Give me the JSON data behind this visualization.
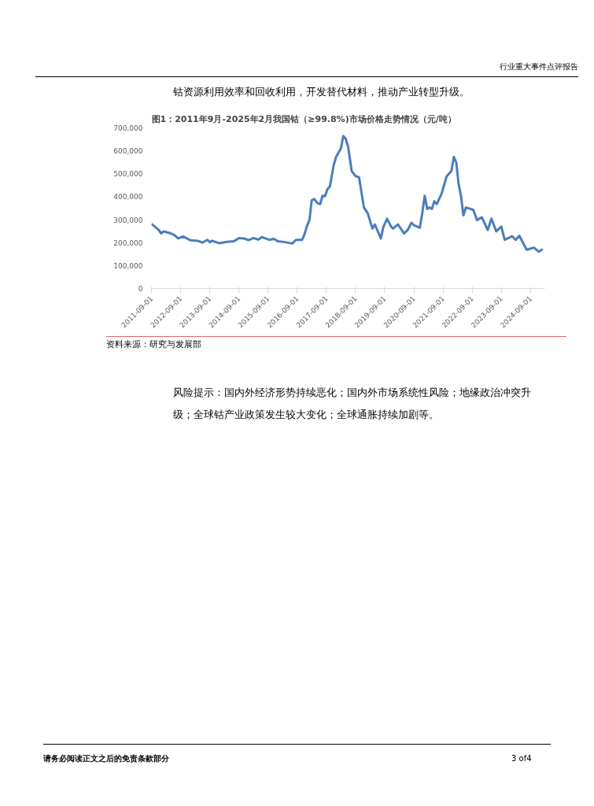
{
  "chart_data": {
    "type": "line",
    "title": "图1：2011年9月-2025年2月我国钴（≥99.8%)市场价格走势情况（元/吨）",
    "annotations": [
      "行业重大事件点评报告",
      "钴资源利用效率和回收利用，开发替代材料，推动产业转型升级。",
      "资料来源：研究与发展部",
      "风险提示：国内外经济形势持续恶化；国内外市场系统性风险；地缘政治冲突升级；全球钴产业政策发生较大变化；全球通胀持续加剧等。",
      "请务必阅读正文之后的免责条款部分",
      "3 of4"
    ],
    "xlim": [
      "2011-09-01",
      "2025-02-28"
    ],
    "xticks": [
      "2011-09-01",
      "2012-09-01",
      "2013-09-01",
      "2014-09-01",
      "2015-09-01",
      "2016-09-01",
      "2017-09-01",
      "2018-09-01",
      "2019-09-01",
      "2020-09-01",
      "2021-09-01",
      "2022-09-01",
      "2023-09-01",
      "2024-09-01"
    ],
    "ylim": [
      0,
      700000
    ],
    "yticks": [
      0,
      {
        "value": 100000,
        "label": "100,000"
      },
      {
        "value": 200000,
        "label": "200,000"
      },
      {
        "value": 300000,
        "label": "300,000"
      },
      {
        "value": 400000,
        "label": "400,000"
      },
      {
        "value": 500000,
        "label": "500,000"
      },
      {
        "value": 600000,
        "label": "600,000"
      },
      {
        "value": 700000,
        "label": "700,000"
      }
    ],
    "grid": false,
    "marker": "none",
    "line_style": "solid",
    "x": [
      "2011-09-01",
      "2011-12-01",
      "2012-01-01",
      "2012-02-01",
      "2012-05-01",
      "2012-06-15",
      "2012-08-01",
      "2012-10-01",
      "2013-01-01",
      "2013-04-01",
      "2013-06-01",
      "2013-08-01",
      "2013-09-01",
      "2013-10-01",
      "2014-01-01",
      "2014-04-01",
      "2014-07-01",
      "2014-09-01",
      "2014-11-01",
      "2015-01-01",
      "2015-03-01",
      "2015-05-01",
      "2015-06-15",
      "2015-09-15",
      "2015-11-15",
      "2016-01-01",
      "2016-04-01",
      "2016-07-01",
      "2016-08-15",
      "2016-11-01",
      "2016-12-01",
      "2017-01-01",
      "2017-02-01",
      "2017-03-01",
      "2017-04-01",
      "2017-05-15",
      "2017-06-15",
      "2017-07-15",
      "2017-08-15",
      "2017-09-15",
      "2017-10-15",
      "2017-12-01",
      "2018-01-01",
      "2018-03-01",
      "2018-04-01",
      "2018-05-01",
      "2018-06-01",
      "2018-07-15",
      "2018-09-01",
      "2018-10-15",
      "2018-12-15",
      "2019-02-01",
      "2019-04-01",
      "2019-05-01",
      "2019-06-15",
      "2019-07-15",
      "2019-08-15",
      "2019-10-01",
      "2019-11-15",
      "2019-12-15",
      "2020-02-15",
      "2020-05-01",
      "2020-06-15",
      "2020-08-01",
      "2020-09-15",
      "2020-11-15",
      "2020-12-15",
      "2021-01-15",
      "2021-02-15",
      "2021-03-15",
      "2021-04-15",
      "2021-05-15",
      "2021-06-15",
      "2021-08-15",
      "2021-10-15",
      "2021-12-15",
      "2022-01-15",
      "2022-02-15",
      "2022-03-15",
      "2022-04-15",
      "2022-05-15",
      "2022-06-15",
      "2022-09-15",
      "2022-11-01",
      "2023-01-01",
      "2023-03-15",
      "2023-05-01",
      "2023-07-01",
      "2023-09-01",
      "2023-10-15",
      "2024-01-15",
      "2024-03-01",
      "2024-04-15",
      "2024-07-15",
      "2024-10-15",
      "2024-12-15",
      "2025-02-01"
    ],
    "series": [
      {
        "color": "#4a7ebb",
        "values": [
          282000,
          255000,
          240000,
          249000,
          240000,
          233000,
          218000,
          227000,
          210000,
          208000,
          200000,
          212000,
          202000,
          208000,
          197000,
          203000,
          206000,
          220000,
          218000,
          211000,
          220000,
          213000,
          224000,
          212000,
          216000,
          206000,
          202000,
          196000,
          212000,
          212000,
          236000,
          273000,
          298000,
          384000,
          390000,
          371000,
          368000,
          404000,
          402000,
          433000,
          445000,
          537000,
          574000,
          610000,
          665000,
          653000,
          616000,
          512000,
          490000,
          485000,
          353000,
          328000,
          261000,
          279000,
          243000,
          218000,
          267000,
          304000,
          273000,
          261000,
          279000,
          240000,
          255000,
          286000,
          273000,
          265000,
          328000,
          404000,
          347000,
          353000,
          347000,
          380000,
          368000,
          414000,
          488000,
          512000,
          574000,
          549000,
          457000,
          402000,
          319000,
          353000,
          343000,
          298000,
          310000,
          255000,
          304000,
          249000,
          270000,
          212000,
          228000,
          212000,
          230000,
          169000,
          178000,
          160000,
          172000
        ]
      }
    ]
  }
}
